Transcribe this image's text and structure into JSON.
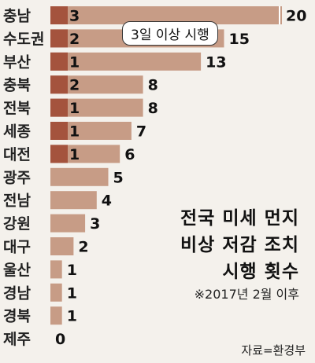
{
  "colors": {
    "total_bar": "#c79c86",
    "emergency_bar": "#a4533d",
    "background": "#f4f1ec"
  },
  "title_lines": [
    "전국 미세 먼지",
    "비상 저감 조치",
    "시행 횟수"
  ],
  "subtitle": "※2017년 2월 이후",
  "source": "자료=환경부",
  "callout": "3일 이상 시행",
  "chart_data": {
    "type": "bar",
    "orientation": "horizontal",
    "categories": [
      "충남",
      "수도권",
      "부산",
      "충북",
      "전북",
      "세종",
      "대전",
      "광주",
      "전남",
      "강원",
      "대구",
      "울산",
      "경남",
      "경북",
      "제주"
    ],
    "series": [
      {
        "values": [
          20,
          15,
          13,
          8,
          8,
          7,
          6,
          5,
          4,
          3,
          2,
          1,
          1,
          1,
          0
        ]
      },
      {
        "values": [
          3,
          2,
          1,
          2,
          1,
          1,
          1,
          null,
          null,
          null,
          null,
          null,
          null,
          null,
          null
        ]
      }
    ],
    "xlim": [
      0,
      20
    ],
    "grid": false,
    "legend": "none"
  }
}
